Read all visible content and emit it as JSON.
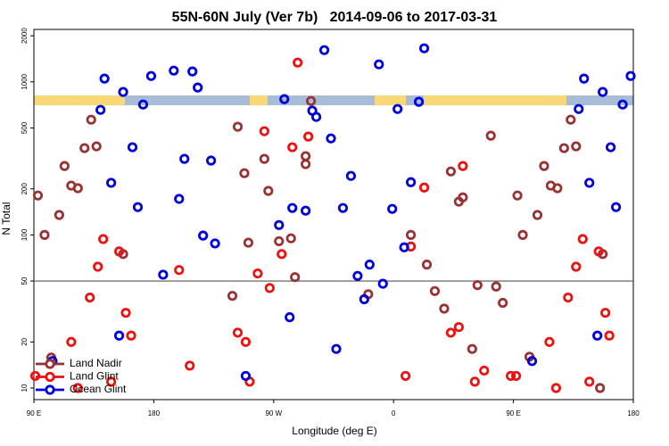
{
  "chart_data": {
    "type": "scatter",
    "title": "55N-60N July (Ver 7b)   2014-09-06 to 2017-03-31",
    "xlabel": "Longitude (deg E)",
    "ylabel": "N Total",
    "xlim": [
      90,
      540
    ],
    "xticks": [
      {
        "value": 90,
        "label": "90 E"
      },
      {
        "value": 180,
        "label": "180"
      },
      {
        "value": 270,
        "label": "90 W"
      },
      {
        "value": 360,
        "label": "0"
      },
      {
        "value": 450,
        "label": "90 E"
      },
      {
        "value": 540,
        "label": "180"
      }
    ],
    "ylim": [
      8.4,
      2200
    ],
    "yticks": [
      10,
      20,
      50,
      100,
      200,
      500,
      1000,
      2000
    ],
    "ylog": true,
    "hline": 50,
    "legend": "bottom left",
    "series": [
      {
        "name": "Land Nadir",
        "color": "#993333",
        "x": [
          93,
          98,
          103,
          109,
          113,
          118,
          123,
          128,
          133,
          137,
          157,
          239,
          243,
          248,
          251,
          263,
          266,
          274,
          286,
          283,
          294,
          294,
          298,
          341,
          373,
          385,
          391,
          398,
          403,
          409,
          412,
          419,
          423,
          433,
          437,
          442,
          453,
          457,
          462,
          468,
          473,
          478,
          483,
          488,
          493,
          497,
          517,
          515
        ],
        "values": [
          181,
          100,
          15.8,
          135,
          282,
          210,
          202,
          369,
          566,
          379,
          75,
          40,
          509,
          253,
          89,
          314,
          194,
          91,
          53,
          95,
          327,
          290,
          750,
          41,
          100,
          64,
          43,
          33,
          260,
          165,
          176,
          18,
          47,
          445,
          46,
          36,
          181,
          100,
          16,
          135,
          282,
          210,
          202,
          369,
          566,
          379,
          75,
          10
        ]
      },
      {
        "name": "Land Glint",
        "color": "#ee1111",
        "x": [
          91,
          118,
          123,
          132,
          138,
          142,
          148,
          154,
          159,
          163,
          199,
          207,
          243,
          249,
          252,
          258,
          263,
          267,
          276,
          284,
          288,
          296,
          369,
          373,
          383,
          403,
          409,
          412,
          421,
          428,
          448,
          452,
          477,
          482,
          491,
          497,
          502,
          507,
          514,
          519,
          522
        ],
        "values": [
          12,
          20,
          10,
          39,
          62,
          94,
          11,
          78,
          31,
          22,
          59,
          14,
          23,
          20,
          11,
          56,
          476,
          45,
          75,
          374,
          1336,
          439,
          12,
          84,
          204,
          23,
          25,
          282,
          11,
          13,
          12,
          12,
          20,
          10,
          39,
          62,
          94,
          11,
          78,
          31,
          22
        ]
      },
      {
        "name": "Ocean Glint",
        "color": "#0000dd",
        "x": [
          104,
          140,
          143,
          148,
          154,
          157,
          164,
          168,
          172,
          178,
          187,
          195,
          199,
          203,
          209,
          213,
          217,
          223,
          226,
          249,
          274,
          278,
          282,
          284,
          294,
          299,
          302,
          308,
          313,
          317,
          322,
          328,
          333,
          338,
          342,
          349,
          352,
          359,
          363,
          368,
          373,
          379,
          383,
          464,
          499,
          503,
          507,
          513,
          517,
          523,
          527,
          532,
          538
        ],
        "values": [
          15,
          656,
          1050,
          219,
          22,
          859,
          374,
          152,
          711,
          1092,
          55,
          1184,
          172,
          314,
          1169,
          918,
          99,
          306,
          88,
          12,
          116,
          771,
          29,
          150,
          144,
          648,
          590,
          1612,
          427,
          18,
          150,
          243,
          54,
          38,
          64,
          1300,
          48,
          148,
          665,
          83,
          221,
          741,
          1656,
          15,
          665,
          1050,
          219,
          22,
          859,
          374,
          152,
          711,
          1092
        ]
      }
    ]
  }
}
